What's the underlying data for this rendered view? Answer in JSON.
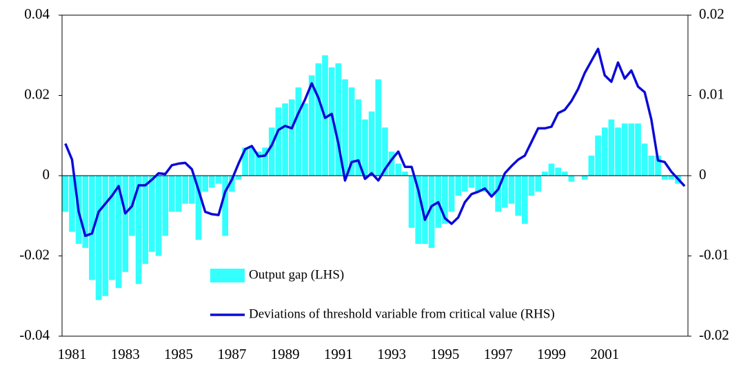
{
  "chart_data": {
    "type": "bar",
    "categories": [
      null,
      "1981",
      null,
      null,
      null,
      null,
      null,
      null,
      null,
      "1983",
      null,
      null,
      null,
      null,
      null,
      null,
      null,
      "1985",
      null,
      null,
      null,
      null,
      null,
      null,
      null,
      "1987",
      null,
      null,
      null,
      null,
      null,
      null,
      null,
      "1989",
      null,
      null,
      null,
      null,
      null,
      null,
      null,
      "1991",
      null,
      null,
      null,
      null,
      null,
      null,
      null,
      "1993",
      null,
      null,
      null,
      null,
      null,
      null,
      null,
      "1995",
      null,
      null,
      null,
      null,
      null,
      null,
      null,
      "1997",
      null,
      null,
      null,
      null,
      null,
      null,
      null,
      "1999",
      null,
      null,
      null,
      null,
      null,
      null,
      null,
      "2001",
      null,
      null,
      null,
      null,
      null,
      null,
      null,
      null,
      null,
      null,
      null,
      null
    ],
    "series": [
      {
        "name": "Output gap (LHS)",
        "type": "bar",
        "color": "#33ffff",
        "values": [
          -0.009,
          -0.014,
          -0.017,
          -0.018,
          -0.026,
          -0.031,
          -0.03,
          -0.026,
          -0.028,
          -0.024,
          -0.015,
          -0.027,
          -0.022,
          -0.019,
          -0.02,
          -0.015,
          -0.009,
          -0.009,
          -0.007,
          -0.007,
          -0.016,
          -0.004,
          -0.003,
          -0.002,
          -0.015,
          -0.004,
          -0.001,
          0.007,
          0.007,
          0.006,
          0.007,
          0.012,
          0.017,
          0.018,
          0.019,
          0.022,
          0.018,
          0.025,
          0.028,
          0.03,
          0.027,
          0.028,
          0.024,
          0.022,
          0.019,
          0.014,
          0.016,
          0.024,
          0.012,
          0.006,
          0.003,
          0.001,
          -0.013,
          -0.017,
          -0.017,
          -0.018,
          -0.013,
          -0.012,
          -0.009,
          -0.005,
          -0.004,
          -0.003,
          -0.004,
          -0.004,
          -0.005,
          -0.009,
          -0.008,
          -0.007,
          -0.01,
          -0.012,
          -0.005,
          -0.004,
          0.001,
          0.003,
          0.002,
          0.001,
          -0.0015,
          0,
          -0.001,
          0.005,
          0.01,
          0.012,
          0.014,
          0.012,
          0.013,
          0.013,
          0.013,
          0.008,
          0.005,
          0.005,
          -0.001,
          -0.001,
          -0.002,
          0
        ]
      },
      {
        "name": "Deviations of threshold variable from critical value (RHS)",
        "type": "line",
        "axis": "y2",
        "color": "#0a0ad8",
        "values": [
          0.004,
          0.002,
          -0.0045,
          -0.0075,
          -0.0072,
          -0.0045,
          -0.0035,
          -0.0025,
          -0.0013,
          -0.0047,
          -0.0038,
          -0.0012,
          -0.0012,
          -0.0005,
          0.0003,
          0.0002,
          0.0013,
          0.0015,
          0.0016,
          0.0008,
          -0.0018,
          -0.0045,
          -0.0048,
          -0.0049,
          -0.002,
          -0.0005,
          0.0015,
          0.0033,
          0.0037,
          0.0024,
          0.0025,
          0.0038,
          0.0057,
          0.0062,
          0.0059,
          0.0078,
          0.0095,
          0.0115,
          0.0097,
          0.0072,
          0.0077,
          0.004,
          -0.0006,
          0.0017,
          0.0019,
          -0.0004,
          0.0003,
          -0.0006,
          0.0008,
          0.002,
          0.003,
          0.0011,
          0.0011,
          -0.0018,
          -0.0055,
          -0.0038,
          -0.0033,
          -0.0053,
          -0.006,
          -0.0052,
          -0.0033,
          -0.0023,
          -0.002,
          -0.0016,
          -0.0026,
          -0.0017,
          0.0003,
          0.0012,
          0.002,
          0.0025,
          0.0042,
          0.0059,
          0.0059,
          0.0061,
          0.0078,
          0.0082,
          0.0093,
          0.0108,
          0.0128,
          0.0143,
          0.0158,
          0.0125,
          0.0117,
          0.0141,
          0.0121,
          0.0131,
          0.0111,
          0.0104,
          0.007,
          0.0019,
          0.0017,
          0.0005,
          -0.0004,
          -0.0013
        ]
      }
    ],
    "ylim": [
      -0.04,
      0.04
    ],
    "yticks": [
      -0.04,
      -0.02,
      0,
      0.02,
      0.04
    ],
    "y2lim": [
      -0.02,
      0.02
    ],
    "y2ticks": [
      -0.02,
      -0.01,
      0,
      0.01,
      0.02
    ],
    "legend": "lower-center",
    "grid": false
  }
}
